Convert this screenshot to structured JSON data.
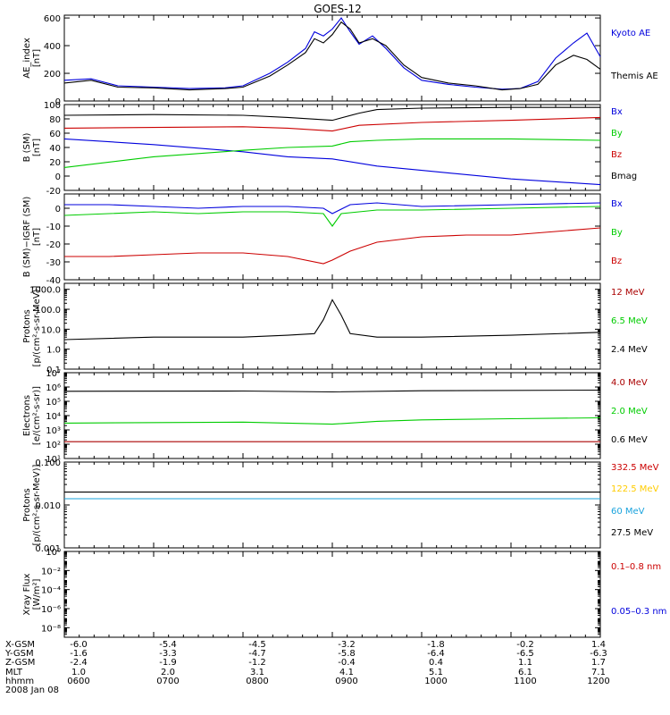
{
  "title": "GOES-12",
  "colors": {
    "black": "#000000",
    "blue": "#0000dd",
    "red": "#cc0000",
    "green": "#00cc00",
    "darkred": "#aa0000",
    "yellow": "#ffcc00",
    "cyan": "#1aa3dd"
  },
  "chart_data": [
    {
      "type": "line",
      "ylabel_lines": [
        "AE_index",
        "[nT]"
      ],
      "ylim": [
        0,
        620
      ],
      "yticks": [
        "0",
        "200",
        "400",
        "600"
      ],
      "x_hours": [
        6,
        12
      ],
      "series": [
        {
          "name": "Kyoto AE",
          "color": "blue",
          "x": [
            6.0,
            6.3,
            6.6,
            7.0,
            7.4,
            7.8,
            8.0,
            8.3,
            8.5,
            8.7,
            8.8,
            8.9,
            9.0,
            9.1,
            9.2,
            9.3,
            9.45,
            9.6,
            9.8,
            10.0,
            10.3,
            10.6,
            10.9,
            11.1,
            11.3,
            11.5,
            11.7,
            11.85,
            12.0
          ],
          "y": [
            150,
            160,
            110,
            100,
            90,
            95,
            110,
            200,
            280,
            380,
            500,
            470,
            520,
            600,
            500,
            410,
            470,
            380,
            240,
            150,
            120,
            100,
            85,
            90,
            140,
            310,
            420,
            490,
            320
          ]
        },
        {
          "name": "Themis AE",
          "color": "black",
          "x": [
            6.0,
            6.3,
            6.6,
            7.0,
            7.4,
            7.8,
            8.0,
            8.3,
            8.5,
            8.7,
            8.8,
            8.9,
            9.0,
            9.1,
            9.2,
            9.3,
            9.45,
            9.6,
            9.8,
            10.0,
            10.3,
            10.6,
            10.9,
            11.1,
            11.3,
            11.5,
            11.7,
            11.85,
            12.0
          ],
          "y": [
            130,
            150,
            100,
            95,
            80,
            90,
            100,
            180,
            260,
            350,
            450,
            420,
            480,
            570,
            520,
            420,
            450,
            400,
            260,
            170,
            130,
            110,
            80,
            90,
            120,
            260,
            330,
            300,
            230
          ]
        }
      ]
    },
    {
      "type": "line",
      "ylabel_lines": [
        "B (SM)",
        "[nT]"
      ],
      "ylim": [
        -20,
        100
      ],
      "yticks": [
        "-20",
        "0",
        "20",
        "40",
        "60",
        "80",
        "100"
      ],
      "x_hours": [
        6,
        12
      ],
      "series": [
        {
          "name": "Bx",
          "color": "blue",
          "x": [
            6.0,
            7.0,
            8.0,
            8.5,
            9.0,
            9.5,
            10.0,
            11.0,
            12.0
          ],
          "y": [
            52,
            44,
            34,
            27,
            24,
            14,
            8,
            -4,
            -12
          ]
        },
        {
          "name": "By",
          "color": "green",
          "x": [
            6.0,
            7.0,
            8.0,
            8.5,
            9.0,
            9.2,
            9.5,
            10.0,
            11.0,
            12.0
          ],
          "y": [
            12,
            27,
            36,
            40,
            42,
            48,
            50,
            52,
            52,
            50
          ]
        },
        {
          "name": "Bz",
          "color": "red",
          "x": [
            6.0,
            7.0,
            8.0,
            8.5,
            9.0,
            9.3,
            10.0,
            11.0,
            12.0
          ],
          "y": [
            67,
            68,
            69,
            67,
            63,
            71,
            75,
            78,
            82
          ]
        },
        {
          "name": "Bmag",
          "color": "black",
          "x": [
            6.0,
            7.0,
            8.0,
            8.5,
            9.0,
            9.3,
            9.5,
            10.0,
            11.0,
            12.0
          ],
          "y": [
            85,
            86,
            85,
            82,
            78,
            88,
            93,
            95,
            96,
            96
          ]
        }
      ]
    },
    {
      "type": "line",
      "ylabel_lines": [
        "B (SM)−IGRF (SM)",
        "[nT]"
      ],
      "ylim": [
        -40,
        8
      ],
      "yticks": [
        "-40",
        "-30",
        "-20",
        "-10",
        "0"
      ],
      "x_hours": [
        6,
        12
      ],
      "series": [
        {
          "name": "Bx",
          "color": "blue",
          "x": [
            6.0,
            6.5,
            7.0,
            7.5,
            8.0,
            8.5,
            8.9,
            9.0,
            9.2,
            9.5,
            10.0,
            11.0,
            12.0
          ],
          "y": [
            2,
            2,
            1,
            0,
            1,
            1,
            0,
            -3,
            2,
            3,
            1,
            2,
            3
          ]
        },
        {
          "name": "By",
          "color": "green",
          "x": [
            6.0,
            6.5,
            7.0,
            7.5,
            8.0,
            8.5,
            8.9,
            9.0,
            9.1,
            9.5,
            10.0,
            11.0,
            12.0
          ],
          "y": [
            -4,
            -3,
            -2,
            -3,
            -2,
            -2,
            -3,
            -10,
            -3,
            -1,
            -1,
            0,
            1
          ]
        },
        {
          "name": "Bz",
          "color": "red",
          "x": [
            6.0,
            6.5,
            7.0,
            7.5,
            8.0,
            8.5,
            8.9,
            9.0,
            9.2,
            9.5,
            10.0,
            10.5,
            11.0,
            11.5,
            12.0
          ],
          "y": [
            -27,
            -27,
            -26,
            -25,
            -25,
            -27,
            -31,
            -29,
            -24,
            -19,
            -16,
            -15,
            -15,
            -13,
            -11
          ]
        }
      ]
    },
    {
      "type": "line",
      "log_scale": true,
      "ylabel_lines": [
        "Protons",
        "[p/(cm²-s-sr-MeV)]"
      ],
      "ylim_log10": [
        -1,
        3.3
      ],
      "yticks": [
        "0.1",
        "1.0",
        "10.0",
        "100.0",
        "1000.0"
      ],
      "x_hours": [
        6,
        12
      ],
      "series": [
        {
          "name": "12 MeV",
          "color": "darkred",
          "x": [],
          "y": []
        },
        {
          "name": "6.5 MeV",
          "color": "green",
          "x": [],
          "y": []
        },
        {
          "name": "2.4 MeV",
          "color": "black",
          "x": [
            6.0,
            7.0,
            8.0,
            8.5,
            8.8,
            8.9,
            9.0,
            9.1,
            9.2,
            9.5,
            10.0,
            11.0,
            12.0
          ],
          "y": [
            3,
            4,
            4,
            5,
            6,
            30,
            300,
            50,
            6,
            4,
            4,
            5,
            7
          ]
        }
      ]
    },
    {
      "type": "line",
      "log_scale": true,
      "ylabel_lines": [
        "Electrons",
        "[e/(cm²-s-sr)]"
      ],
      "ylim_log10": [
        1,
        7
      ],
      "yticks": [
        "10¹",
        "10²",
        "10³",
        "10⁴",
        "10⁵",
        "10⁶",
        "10⁷"
      ],
      "x_hours": [
        6,
        12
      ],
      "series": [
        {
          "name": "4.0 MeV",
          "color": "darkred",
          "x": [
            6.0,
            12.0
          ],
          "y": [
            150,
            150
          ]
        },
        {
          "name": "2.0 MeV",
          "color": "green",
          "x": [
            6.0,
            8.0,
            9.0,
            9.5,
            10.0,
            11.0,
            12.0
          ],
          "y": [
            3000,
            3500,
            2500,
            4000,
            5000,
            6000,
            7000
          ]
        },
        {
          "name": "0.6 MeV",
          "color": "black",
          "x": [
            6.0,
            8.0,
            9.0,
            10.0,
            12.0
          ],
          "y": [
            500000,
            520000,
            450000,
            550000,
            600000
          ]
        }
      ]
    },
    {
      "type": "line",
      "log_scale": true,
      "ylabel_lines": [
        "Protons",
        "[p/(cm²-s-sr-MeV)]"
      ],
      "ylim_log10": [
        -3,
        -1
      ],
      "yticks": [
        "0.001",
        "0.010",
        "0.100"
      ],
      "x_hours": [
        6,
        12
      ],
      "series": [
        {
          "name": "332.5 MeV",
          "color": "red",
          "x": [],
          "y": []
        },
        {
          "name": "122.5 MeV",
          "color": "yellow",
          "x": [],
          "y": []
        },
        {
          "name": "60 MeV",
          "color": "cyan",
          "x": [
            6.0,
            12.0
          ],
          "y": [
            0.014,
            0.014
          ]
        },
        {
          "name": "27.5 MeV",
          "color": "black",
          "x": [
            6.0,
            12.0
          ],
          "y": [
            0.02,
            0.02
          ]
        }
      ]
    },
    {
      "type": "line",
      "log_scale": true,
      "ylabel_lines": [
        "Xray Flux",
        "[W/m²]"
      ],
      "ylim_log10": [
        -9,
        0
      ],
      "yticks": [
        "10⁻⁸",
        "10⁻⁶",
        "10⁻⁴",
        "10⁻²",
        "10⁰"
      ],
      "x_hours": [
        6,
        12
      ],
      "series": [
        {
          "name": "0.1–0.8 nm",
          "color": "red",
          "x": [],
          "y": []
        },
        {
          "name": "0.05–0.3 nm",
          "color": "blue",
          "x": [],
          "y": []
        }
      ]
    }
  ],
  "orbit_table": {
    "labels": [
      "X-GSM",
      "Y-GSM",
      "Z-GSM",
      "MLT",
      "hhmm",
      "2008 Jan 08"
    ],
    "columns": [
      [
        "-6.0",
        "-1.6",
        "-2.4",
        "1.0",
        "0600"
      ],
      [
        "-5.4",
        "-3.3",
        "-1.9",
        "2.0",
        "0700"
      ],
      [
        "-4.5",
        "-4.7",
        "-1.2",
        "3.1",
        "0800"
      ],
      [
        "-3.2",
        "-5.8",
        "-0.4",
        "4.1",
        "0900"
      ],
      [
        "-1.8",
        "-6.4",
        "0.4",
        "5.1",
        "1000"
      ],
      [
        "-0.2",
        "-6.5",
        "1.1",
        "6.1",
        "1100"
      ],
      [
        "1.4",
        "-6.3",
        "1.7",
        "7.1",
        "1200"
      ]
    ]
  }
}
